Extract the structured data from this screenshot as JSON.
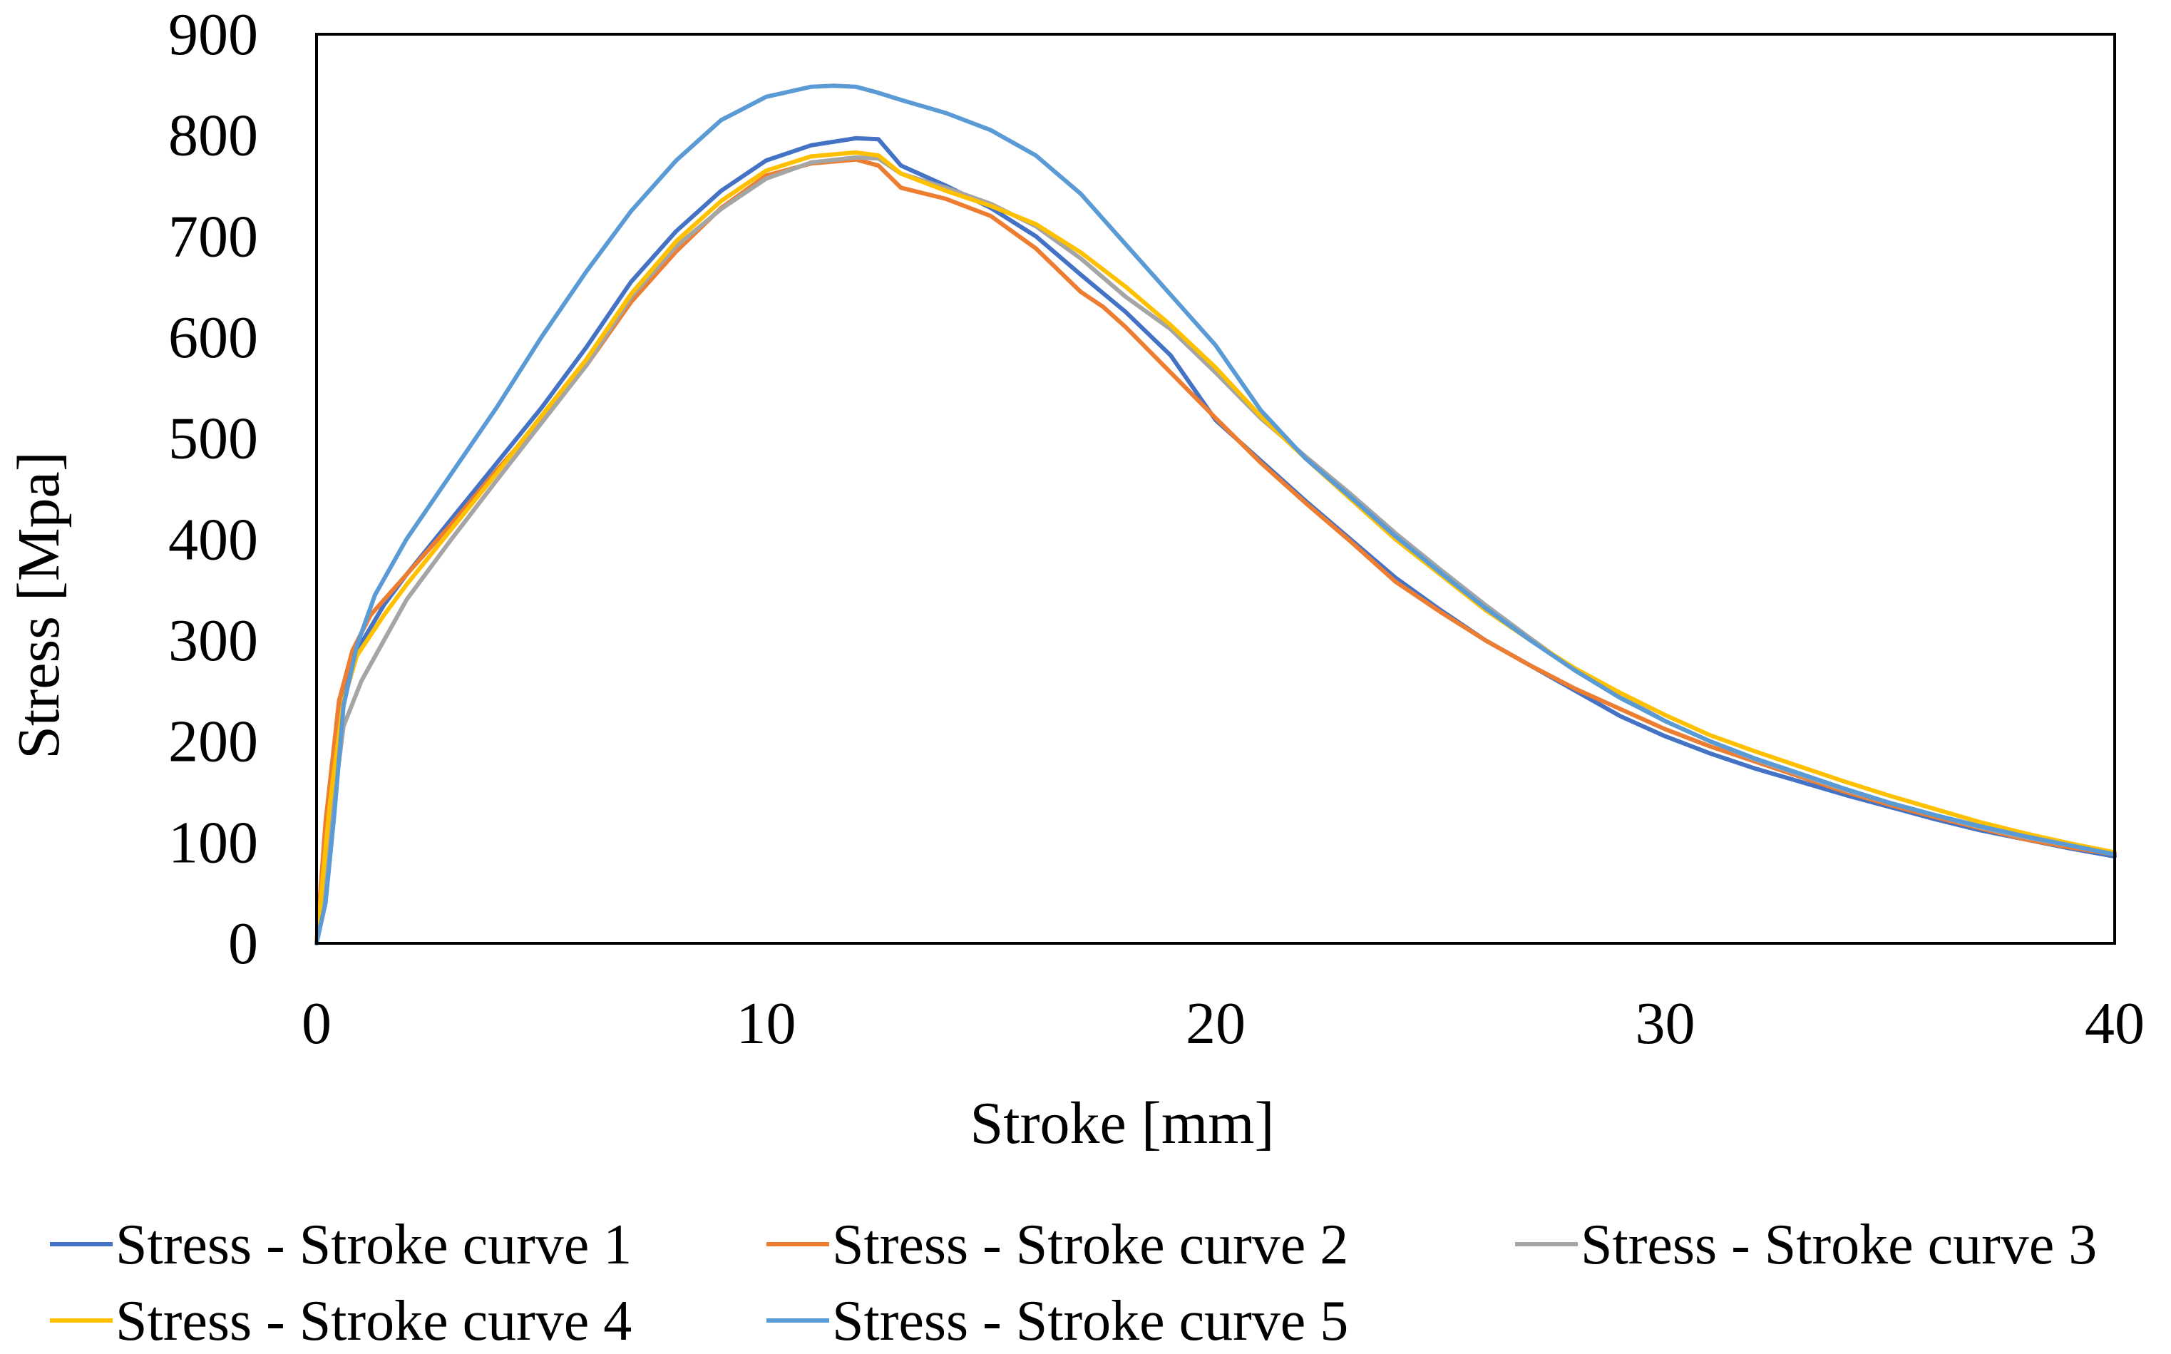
{
  "chart_data": {
    "type": "line",
    "title": "",
    "xlabel": "Stroke [mm]",
    "ylabel": "Stress [Mpa]",
    "xlim": [
      0,
      40
    ],
    "ylim": [
      0,
      900
    ],
    "xticks": [
      0,
      10,
      20,
      30,
      40
    ],
    "yticks": [
      0,
      100,
      200,
      300,
      400,
      500,
      600,
      700,
      800,
      900
    ],
    "grid": false,
    "legend_position": "bottom",
    "series": [
      {
        "name": "Stress - Stroke curve 1",
        "color": "#4472C4",
        "x": [
          0,
          0.3,
          0.6,
          0.9,
          1.5,
          2,
          3,
          4,
          5,
          6,
          7,
          8,
          9,
          10,
          11,
          12,
          12.5,
          13,
          14,
          15,
          16,
          17,
          18,
          19,
          20,
          21,
          22,
          23,
          24,
          25,
          26,
          27,
          28,
          29,
          30,
          31,
          32,
          33,
          34,
          35,
          36,
          37,
          38,
          39,
          40
        ],
        "y": [
          0,
          150,
          245,
          290,
          335,
          365,
          420,
          475,
          530,
          590,
          655,
          705,
          745,
          775,
          790,
          797,
          796,
          770,
          750,
          728,
          700,
          662,
          625,
          582,
          518,
          478,
          438,
          400,
          362,
          330,
          300,
          275,
          250,
          225,
          205,
          188,
          173,
          160,
          147,
          135,
          123,
          112,
          103,
          94,
          86
        ]
      },
      {
        "name": "Stress - Stroke curve 2",
        "color": "#ED7D31",
        "x": [
          0,
          0.2,
          0.5,
          0.8,
          1.2,
          2,
          3,
          4,
          5,
          6,
          7,
          8,
          9,
          10,
          11,
          12,
          12.5,
          13,
          14,
          15,
          16,
          17,
          17.5,
          18,
          19,
          20,
          21,
          22,
          23,
          24,
          25,
          26,
          27,
          28,
          29,
          30,
          31,
          32,
          33,
          34,
          35,
          36,
          37,
          38,
          39,
          40
        ],
        "y": [
          0,
          120,
          240,
          290,
          325,
          365,
          415,
          468,
          518,
          572,
          635,
          685,
          728,
          760,
          772,
          776,
          770,
          748,
          737,
          720,
          688,
          645,
          630,
          610,
          565,
          520,
          476,
          436,
          398,
          358,
          328,
          300,
          275,
          252,
          232,
          212,
          195,
          180,
          165,
          150,
          137,
          125,
          114,
          103,
          95,
          88
        ]
      },
      {
        "name": "Stress - Stroke curve 3",
        "color": "#A5A5A5",
        "x": [
          0,
          0.3,
          0.6,
          1,
          1.5,
          2,
          3,
          4,
          5,
          6,
          7,
          8,
          9,
          10,
          11,
          12,
          12.5,
          13,
          14,
          15,
          16,
          17,
          18,
          19,
          20,
          21,
          22,
          23,
          24,
          25,
          26,
          27,
          28,
          29,
          30,
          31,
          32,
          33,
          34,
          35,
          36,
          37,
          38,
          39,
          40
        ],
        "y": [
          0,
          110,
          215,
          260,
          300,
          340,
          400,
          458,
          515,
          572,
          640,
          690,
          727,
          757,
          773,
          778,
          777,
          762,
          748,
          732,
          710,
          678,
          640,
          608,
          565,
          520,
          482,
          445,
          406,
          370,
          335,
          302,
          270,
          245,
          220,
          200,
          182,
          167,
          152,
          139,
          127,
          115,
          105,
          97,
          89
        ]
      },
      {
        "name": "Stress - Stroke curve 4",
        "color": "#FFC000",
        "x": [
          0,
          0.3,
          0.6,
          0.9,
          1.5,
          2,
          3,
          4,
          5,
          6,
          7,
          8,
          9,
          10,
          11,
          12,
          12.5,
          13,
          14,
          15,
          16,
          17,
          18,
          19,
          20,
          21,
          22,
          23,
          24,
          25,
          26,
          27,
          28,
          29,
          30,
          31,
          32,
          33,
          34,
          35,
          36,
          37,
          38,
          39,
          40
        ],
        "y": [
          0,
          140,
          240,
          285,
          325,
          355,
          410,
          465,
          522,
          578,
          643,
          695,
          735,
          765,
          779,
          783,
          780,
          762,
          745,
          730,
          712,
          684,
          650,
          612,
          570,
          522,
          480,
          440,
          400,
          365,
          330,
          300,
          272,
          248,
          226,
          206,
          190,
          175,
          160,
          146,
          133,
          120,
          109,
          99,
          90
        ]
      },
      {
        "name": "Stress - Stroke curve 5",
        "color": "#5B9BD5",
        "x": [
          0,
          0.2,
          0.4,
          0.6,
          0.9,
          1.3,
          2,
          3,
          4,
          5,
          6,
          7,
          8,
          9,
          10,
          11,
          11.5,
          12,
          12.5,
          13,
          14,
          15,
          16,
          17,
          18,
          19,
          20,
          21,
          22,
          23,
          24,
          25,
          26,
          27,
          28,
          29,
          30,
          31,
          32,
          33,
          34,
          35,
          36,
          37,
          38,
          39,
          40
        ],
        "y": [
          0,
          40,
          130,
          235,
          295,
          345,
          400,
          465,
          530,
          600,
          665,
          725,
          775,
          815,
          838,
          848,
          849,
          848,
          842,
          835,
          822,
          805,
          780,
          742,
          692,
          642,
          592,
          528,
          480,
          442,
          403,
          367,
          332,
          300,
          270,
          243,
          220,
          200,
          183,
          168,
          153,
          139,
          127,
          116,
          106,
          97,
          88
        ]
      }
    ]
  }
}
